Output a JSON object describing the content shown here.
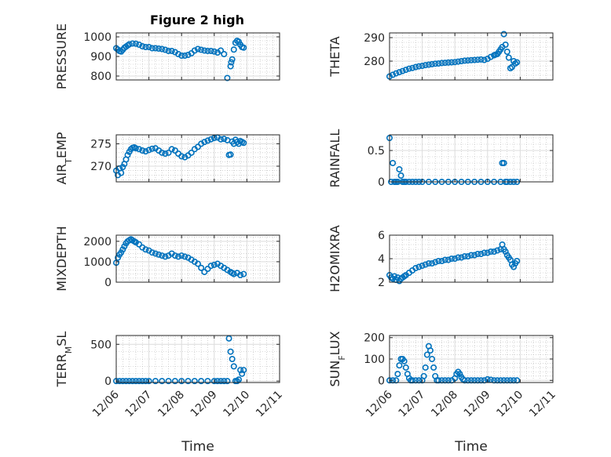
{
  "chart_data": [
    {
      "type": "scatter",
      "title": "Figure 2 high",
      "ylabel": "PRESSURE",
      "ylim": [
        780,
        1020
      ],
      "yticks": [
        800,
        900,
        1000
      ],
      "xlim": [
        0,
        5
      ],
      "grid": true,
      "x": [
        0.0,
        0.05,
        0.1,
        0.15,
        0.2,
        0.25,
        0.3,
        0.35,
        0.4,
        0.5,
        0.6,
        0.7,
        0.8,
        0.9,
        1.0,
        1.1,
        1.2,
        1.3,
        1.4,
        1.5,
        1.6,
        1.7,
        1.8,
        1.9,
        2.0,
        2.1,
        2.2,
        2.3,
        2.4,
        2.5,
        2.6,
        2.7,
        2.8,
        2.9,
        3.0,
        3.1,
        3.2,
        3.3,
        3.4,
        3.5,
        3.52,
        3.55,
        3.6,
        3.65,
        3.7,
        3.75,
        3.8,
        3.85,
        3.9
      ],
      "y": [
        942,
        935,
        928,
        925,
        934,
        944,
        950,
        956,
        962,
        966,
        965,
        960,
        952,
        948,
        948,
        942,
        942,
        940,
        938,
        934,
        928,
        928,
        922,
        912,
        904,
        904,
        908,
        916,
        930,
        938,
        934,
        930,
        928,
        928,
        925,
        920,
        930,
        912,
        790,
        850,
        870,
        885,
        935,
        970,
        980,
        975,
        960,
        948,
        945
      ]
    },
    {
      "type": "scatter",
      "ylabel": "THETA",
      "ylim": [
        272,
        292
      ],
      "yticks": [
        280,
        290
      ],
      "xlim": [
        0,
        5
      ],
      "grid": true,
      "x": [
        0.0,
        0.1,
        0.2,
        0.3,
        0.4,
        0.5,
        0.6,
        0.7,
        0.8,
        0.9,
        1.0,
        1.1,
        1.2,
        1.3,
        1.4,
        1.5,
        1.6,
        1.7,
        1.8,
        1.9,
        2.0,
        2.1,
        2.2,
        2.3,
        2.4,
        2.5,
        2.6,
        2.7,
        2.8,
        2.9,
        3.0,
        3.1,
        3.2,
        3.25,
        3.3,
        3.35,
        3.4,
        3.45,
        3.5,
        3.55,
        3.6,
        3.65,
        3.7,
        3.75,
        3.8,
        3.85,
        3.9
      ],
      "y": [
        273.5,
        274.2,
        274.8,
        275.3,
        275.8,
        276.3,
        276.8,
        277.1,
        277.5,
        277.8,
        278.0,
        278.3,
        278.5,
        278.7,
        278.9,
        279.0,
        279.2,
        279.3,
        279.4,
        279.5,
        279.6,
        279.8,
        280.0,
        280.2,
        280.3,
        280.4,
        280.5,
        280.6,
        280.7,
        280.5,
        281.0,
        281.8,
        282.5,
        282.8,
        283.0,
        284.0,
        285.0,
        286.0,
        291.5,
        287.0,
        284.0,
        281.5,
        277.0,
        277.5,
        280.0,
        279.0,
        279.5
      ]
    },
    {
      "type": "scatter",
      "ylabel": "AIR_T EMP",
      "ylim": [
        266.5,
        277
      ],
      "yticks": [
        270,
        275
      ],
      "xlim": [
        0,
        5
      ],
      "grid": true,
      "x": [
        0.0,
        0.05,
        0.1,
        0.15,
        0.2,
        0.25,
        0.3,
        0.35,
        0.4,
        0.45,
        0.5,
        0.55,
        0.6,
        0.7,
        0.8,
        0.9,
        1.0,
        1.1,
        1.2,
        1.3,
        1.4,
        1.5,
        1.6,
        1.7,
        1.8,
        1.9,
        2.0,
        2.1,
        2.2,
        2.3,
        2.4,
        2.5,
        2.6,
        2.7,
        2.8,
        2.9,
        3.0,
        3.1,
        3.2,
        3.3,
        3.4,
        3.45,
        3.5,
        3.55,
        3.6,
        3.65,
        3.7,
        3.75,
        3.8,
        3.85,
        3.9
      ],
      "y": [
        269.0,
        268.0,
        269.5,
        268.5,
        269.8,
        270.5,
        271.5,
        272.5,
        273.2,
        273.8,
        274.1,
        274.2,
        274.0,
        273.8,
        273.5,
        273.3,
        273.6,
        273.9,
        274.0,
        273.5,
        273.0,
        272.8,
        273.0,
        273.8,
        273.5,
        272.8,
        272.2,
        272.0,
        272.4,
        273.0,
        273.8,
        274.3,
        275.0,
        275.4,
        275.7,
        276.0,
        276.3,
        276.4,
        276.0,
        276.1,
        275.8,
        272.5,
        272.6,
        275.5,
        275.0,
        275.9,
        275.4,
        275.0,
        275.6,
        275.4,
        275.2
      ]
    },
    {
      "type": "scatter",
      "ylabel": "RAINFALL",
      "ylim": [
        0,
        0.75
      ],
      "yticks": [
        0,
        0.5
      ],
      "xlim": [
        0,
        5
      ],
      "grid": true,
      "x": [
        0.0,
        0.05,
        0.1,
        0.15,
        0.2,
        0.25,
        0.3,
        0.35,
        0.4,
        0.45,
        0.5,
        0.6,
        0.7,
        0.8,
        0.9,
        1.0,
        1.2,
        1.4,
        1.6,
        1.8,
        2.0,
        2.2,
        2.4,
        2.6,
        2.8,
        3.0,
        3.2,
        3.4,
        3.45,
        3.5,
        3.55,
        3.6,
        3.7,
        3.8,
        3.9
      ],
      "y": [
        0.7,
        0.0,
        0.3,
        0.0,
        0.0,
        0.0,
        0.2,
        0.1,
        0.0,
        0.0,
        0.0,
        0.0,
        0.0,
        0.0,
        0.0,
        0.0,
        0.0,
        0.0,
        0.0,
        0.0,
        0.0,
        0.0,
        0.0,
        0.0,
        0.0,
        0.0,
        0.0,
        0.0,
        0.3,
        0.3,
        0.0,
        0.0,
        0.0,
        0.0,
        0.0
      ]
    },
    {
      "type": "scatter",
      "ylabel": "MIXDEPTH",
      "ylim": [
        0,
        2300
      ],
      "yticks": [
        0,
        1000,
        2000
      ],
      "xlim": [
        0,
        5
      ],
      "grid": true,
      "x": [
        0.0,
        0.05,
        0.1,
        0.15,
        0.2,
        0.25,
        0.3,
        0.35,
        0.4,
        0.45,
        0.5,
        0.55,
        0.6,
        0.7,
        0.8,
        0.9,
        1.0,
        1.1,
        1.2,
        1.3,
        1.4,
        1.5,
        1.6,
        1.7,
        1.8,
        1.9,
        2.0,
        2.1,
        2.2,
        2.3,
        2.4,
        2.5,
        2.6,
        2.7,
        2.8,
        2.9,
        3.0,
        3.1,
        3.2,
        3.3,
        3.4,
        3.5,
        3.55,
        3.6,
        3.7,
        3.8,
        3.9
      ],
      "y": [
        950,
        1200,
        1350,
        1450,
        1600,
        1750,
        1900,
        2000,
        2050,
        2100,
        2050,
        2000,
        1950,
        1850,
        1700,
        1600,
        1550,
        1450,
        1400,
        1350,
        1300,
        1250,
        1300,
        1400,
        1300,
        1250,
        1300,
        1250,
        1200,
        1100,
        1000,
        900,
        700,
        500,
        650,
        800,
        850,
        900,
        800,
        700,
        600,
        500,
        450,
        400,
        450,
        350,
        400
      ]
    },
    {
      "type": "scatter",
      "ylabel": "H2OMIXRA",
      "ylim": [
        2,
        6
      ],
      "yticks": [
        2,
        4,
        6
      ],
      "xlim": [
        0,
        5
      ],
      "grid": true,
      "x": [
        0.0,
        0.05,
        0.1,
        0.15,
        0.2,
        0.25,
        0.3,
        0.35,
        0.4,
        0.45,
        0.5,
        0.6,
        0.7,
        0.8,
        0.9,
        1.0,
        1.1,
        1.2,
        1.3,
        1.4,
        1.5,
        1.6,
        1.7,
        1.8,
        1.9,
        2.0,
        2.1,
        2.2,
        2.3,
        2.4,
        2.5,
        2.6,
        2.7,
        2.8,
        2.9,
        3.0,
        3.1,
        3.2,
        3.3,
        3.4,
        3.45,
        3.5,
        3.55,
        3.6,
        3.65,
        3.7,
        3.75,
        3.8,
        3.85,
        3.9
      ],
      "y": [
        2.6,
        2.4,
        2.3,
        2.5,
        2.2,
        2.4,
        2.1,
        2.3,
        2.4,
        2.5,
        2.6,
        2.8,
        3.0,
        3.2,
        3.3,
        3.4,
        3.5,
        3.6,
        3.6,
        3.7,
        3.8,
        3.8,
        3.9,
        3.9,
        4.0,
        4.0,
        4.1,
        4.1,
        4.2,
        4.2,
        4.3,
        4.3,
        4.4,
        4.4,
        4.5,
        4.5,
        4.6,
        4.6,
        4.7,
        4.8,
        5.2,
        4.8,
        4.6,
        4.3,
        4.1,
        3.9,
        3.5,
        3.3,
        3.6,
        3.8
      ]
    },
    {
      "type": "scatter",
      "ylabel": "TERR_M SL",
      "xlabel": "Time",
      "ylim": [
        -20,
        620
      ],
      "yticks": [
        0,
        500
      ],
      "xlim": [
        0,
        5
      ],
      "xticks": [
        "12/06",
        "12/07",
        "12/08",
        "12/09",
        "12/10",
        "12/11"
      ],
      "grid": true,
      "x": [
        0.0,
        0.1,
        0.2,
        0.3,
        0.4,
        0.5,
        0.6,
        0.7,
        0.8,
        0.9,
        1.0,
        1.2,
        1.4,
        1.6,
        1.8,
        2.0,
        2.2,
        2.4,
        2.6,
        2.8,
        3.0,
        3.1,
        3.2,
        3.3,
        3.4,
        3.45,
        3.5,
        3.55,
        3.6,
        3.65,
        3.7,
        3.75,
        3.8,
        3.85,
        3.9
      ],
      "y": [
        0,
        0,
        0,
        0,
        0,
        0,
        0,
        0,
        0,
        0,
        0,
        0,
        0,
        0,
        0,
        0,
        0,
        0,
        0,
        0,
        0,
        0,
        0,
        0,
        0,
        580,
        400,
        300,
        200,
        0,
        0,
        20,
        150,
        100,
        150
      ]
    },
    {
      "type": "scatter",
      "ylabel": "SUN_F LUX",
      "xlabel": "Time",
      "ylim": [
        -10,
        210
      ],
      "yticks": [
        0,
        100,
        200
      ],
      "xlim": [
        0,
        5
      ],
      "xticks": [
        "12/06",
        "12/07",
        "12/08",
        "12/09",
        "12/10",
        "12/11"
      ],
      "grid": true,
      "x": [
        0.0,
        0.1,
        0.2,
        0.25,
        0.3,
        0.35,
        0.4,
        0.45,
        0.5,
        0.55,
        0.6,
        0.65,
        0.7,
        0.8,
        0.9,
        1.0,
        1.05,
        1.1,
        1.15,
        1.2,
        1.25,
        1.3,
        1.35,
        1.4,
        1.45,
        1.5,
        1.6,
        1.7,
        1.8,
        1.9,
        2.0,
        2.05,
        2.1,
        2.15,
        2.2,
        2.25,
        2.3,
        2.4,
        2.5,
        2.6,
        2.7,
        2.8,
        2.9,
        3.0,
        3.1,
        3.2,
        3.3,
        3.4,
        3.5,
        3.6,
        3.7,
        3.8,
        3.9
      ],
      "y": [
        0,
        0,
        0,
        30,
        70,
        100,
        100,
        90,
        60,
        30,
        10,
        0,
        0,
        0,
        0,
        0,
        20,
        60,
        120,
        160,
        140,
        100,
        60,
        20,
        0,
        0,
        0,
        0,
        0,
        0,
        10,
        30,
        40,
        30,
        15,
        5,
        0,
        0,
        0,
        0,
        0,
        0,
        0,
        5,
        3,
        0,
        0,
        0,
        0,
        0,
        0,
        0,
        0
      ]
    }
  ]
}
